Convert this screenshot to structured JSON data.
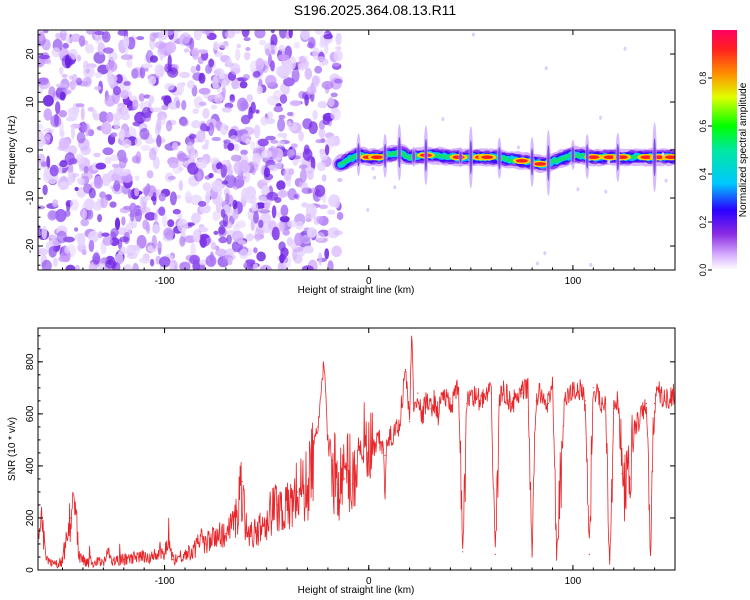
{
  "title": "S196.2025.364.08.13.R11",
  "chart_data": [
    {
      "type": "heatmap",
      "xlabel": "Height of straight line (km)",
      "ylabel": "Frequency (Hz)",
      "xlim": [
        -162,
        150
      ],
      "ylim": [
        -25,
        25
      ],
      "x_ticks": [
        -100,
        0,
        100
      ],
      "y_ticks": [
        -20,
        -10,
        0,
        10,
        20
      ],
      "colorbar": {
        "label": "Normalized spectral amplitude",
        "range": [
          0,
          1
        ],
        "ticks": [
          0.0,
          0.2,
          0.4,
          0.6,
          0.8
        ]
      },
      "noise_region_x": [
        -162,
        -14
      ],
      "ridge": {
        "x": [
          -14,
          -10,
          -5,
          0,
          5,
          10,
          15,
          20,
          30,
          40,
          50,
          60,
          70,
          80,
          85,
          90,
          100,
          110,
          120,
          130,
          140,
          150
        ],
        "y": [
          -3,
          -2,
          -1,
          -1.5,
          -1.5,
          -1,
          -0.5,
          -1.5,
          -1,
          -1.5,
          -1.5,
          -1.5,
          -2,
          -2.5,
          -3,
          -2.5,
          -1,
          -1.5,
          -1.5,
          -1.5,
          -1.5,
          -1.5
        ]
      },
      "grid": false
    },
    {
      "type": "line",
      "xlabel": "Height of straight line (km)",
      "ylabel": "SNR (10 * v/v)",
      "xlim": [
        -162,
        150
      ],
      "ylim": [
        0,
        930
      ],
      "x_ticks": [
        -100,
        0,
        100
      ],
      "y_ticks": [
        0,
        200,
        400,
        600,
        800
      ],
      "series": [
        {
          "color": "#e8262a",
          "x": [
            -162,
            -160,
            -158,
            -155,
            -150,
            -146,
            -144,
            -142,
            -138,
            -130,
            -128,
            -126,
            -120,
            -110,
            -100,
            -98,
            -96,
            -90,
            -85,
            -82,
            -80,
            -75,
            -70,
            -65,
            -62,
            -60,
            -58,
            -55,
            -50,
            -45,
            -40,
            -35,
            -30,
            -25,
            -22,
            -20,
            -18,
            -15,
            -12,
            -10,
            -8,
            -5,
            0,
            5,
            8,
            10,
            15,
            18,
            20,
            21,
            22,
            24,
            26,
            28,
            30,
            32,
            34,
            36,
            40,
            44,
            46,
            48,
            50,
            55,
            60,
            62,
            64,
            66,
            70,
            75,
            78,
            80,
            82,
            84,
            88,
            90,
            92,
            96,
            100,
            104,
            106,
            108,
            110,
            114,
            116,
            118,
            120,
            122,
            124,
            126,
            128,
            130,
            134,
            136,
            138,
            140,
            142,
            145,
            150
          ],
          "y": [
            130,
            180,
            40,
            20,
            30,
            200,
            260,
            60,
            30,
            30,
            80,
            30,
            40,
            50,
            60,
            140,
            40,
            60,
            80,
            130,
            100,
            130,
            140,
            200,
            340,
            160,
            130,
            150,
            200,
            250,
            230,
            300,
            320,
            550,
            780,
            500,
            420,
            330,
            350,
            400,
            330,
            480,
            420,
            500,
            440,
            500,
            560,
            770,
            570,
            930,
            620,
            680,
            580,
            650,
            620,
            650,
            600,
            680,
            630,
            700,
            70,
            640,
            680,
            650,
            680,
            60,
            650,
            690,
            640,
            680,
            700,
            60,
            650,
            680,
            640,
            700,
            60,
            650,
            690,
            690,
            650,
            60,
            700,
            640,
            640,
            40,
            620,
            650,
            370,
            320,
            350,
            540,
            600,
            640,
            60,
            640,
            690,
            650,
            680
          ]
        }
      ],
      "grid": false
    }
  ]
}
